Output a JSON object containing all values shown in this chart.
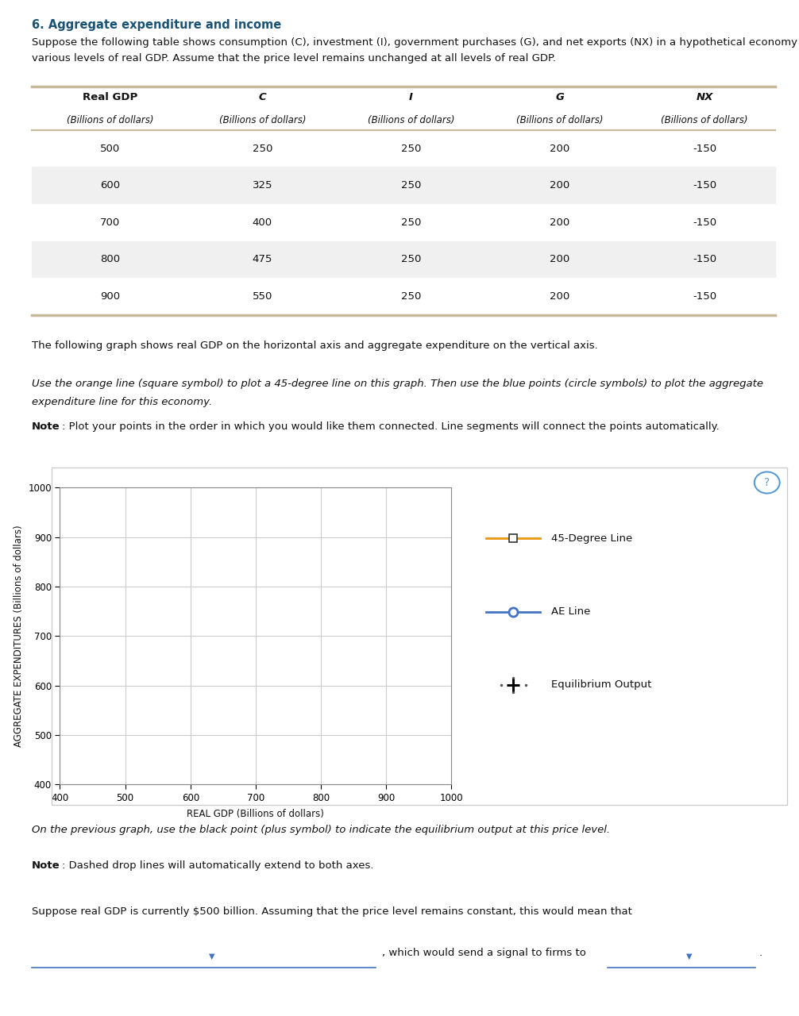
{
  "title": "6. Aggregate expenditure and income",
  "intro_text1": "Suppose the following table shows consumption (C), investment (I), government purchases (G), and net exports (NX) in a hypothetical economy for",
  "intro_text2": "various levels of real GDP. Assume that the price level remains unchanged at all levels of real GDP.",
  "table_headers": [
    "Real GDP",
    "C",
    "I",
    "G",
    "NX"
  ],
  "table_subheaders": [
    "(Billions of dollars)",
    "(Billions of dollars)",
    "(Billions of dollars)",
    "(Billions of dollars)",
    "(Billions of dollars)"
  ],
  "table_data": [
    [
      500,
      250,
      250,
      200,
      -150
    ],
    [
      600,
      325,
      250,
      200,
      -150
    ],
    [
      700,
      400,
      250,
      200,
      -150
    ],
    [
      800,
      475,
      250,
      200,
      -150
    ],
    [
      900,
      550,
      250,
      200,
      -150
    ]
  ],
  "graph_intro": "The following graph shows real GDP on the horizontal axis and aggregate expenditure on the vertical axis.",
  "graph_instruction1": "Use the orange line (square symbol) to plot a 45-degree line on this graph. Then use the blue points (circle symbols) to plot the aggregate",
  "graph_instruction2": "expenditure line for this economy.",
  "graph_note_bold": "Note",
  "graph_note_rest": ": Plot your points in the order in which you would like them connected. Line segments will connect the points automatically.",
  "xlabel": "REAL GDP (Billions of dollars)",
  "ylabel": "AGGREGATE EXPENDITURES (Billions of dollars)",
  "xlim": [
    400,
    1000
  ],
  "ylim": [
    400,
    1000
  ],
  "xticks": [
    400,
    500,
    600,
    700,
    800,
    900,
    1000
  ],
  "yticks": [
    400,
    500,
    600,
    700,
    800,
    900,
    1000
  ],
  "degree45_color": "#E8960A",
  "ae_color": "#4472C4",
  "eq_color": "#000000",
  "legend_labels": [
    "45-Degree Line",
    "AE Line",
    "Equilibrium Output"
  ],
  "bottom_text1": "On the previous graph, use the black point (plus symbol) to indicate the equilibrium output at this price level.",
  "bottom_note_bold": "Note",
  "bottom_note_rest": ": Dashed drop lines will automatically extend to both axes.",
  "bottom_text2": "Suppose real GDP is currently $500 billion. Assuming that the price level remains constant, this would mean that",
  "bottom_text3": ", which would send a signal to firms to",
  "bg_color": "#FFFFFF",
  "grid_color": "#CCCCCC",
  "table_border_color": "#C8B89A",
  "table_row_alt_color": "#F0F0F0",
  "table_row_normal_color": "#FFFFFF",
  "graph_border_color": "#CCCCCC",
  "dropdown_line_color": "#4472C4",
  "dropdown_arrow_color": "#4472C4"
}
